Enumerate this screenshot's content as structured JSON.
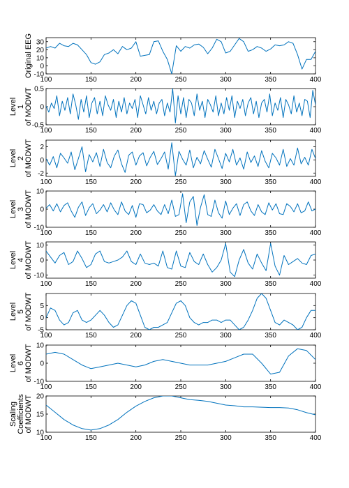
{
  "chart_data": [
    {
      "type": "line",
      "ylabel_lines": [
        "Original EEG"
      ],
      "xlim": [
        100,
        400
      ],
      "ylim": [
        -10,
        35
      ],
      "xticks": [
        100,
        150,
        200,
        250,
        300,
        350,
        400
      ],
      "yticks": [
        -10,
        0,
        10,
        20,
        30
      ],
      "grid": false,
      "line_color": "#0072bd",
      "x": [
        100,
        105,
        110,
        115,
        120,
        125,
        130,
        135,
        140,
        145,
        150,
        155,
        160,
        165,
        170,
        175,
        180,
        185,
        190,
        195,
        200,
        205,
        210,
        215,
        220,
        225,
        230,
        235,
        240,
        245,
        250,
        255,
        260,
        265,
        270,
        275,
        280,
        285,
        290,
        295,
        300,
        305,
        310,
        315,
        320,
        325,
        330,
        335,
        340,
        345,
        350,
        355,
        360,
        365,
        370,
        375,
        380,
        385,
        390,
        395,
        400
      ],
      "y": [
        22,
        24,
        22,
        28,
        25,
        24,
        28,
        26,
        20,
        14,
        4,
        2,
        5,
        14,
        16,
        20,
        15,
        24,
        20,
        22,
        30,
        12,
        13,
        14,
        30,
        31,
        18,
        8,
        -10,
        25,
        18,
        24,
        22,
        26,
        27,
        23,
        15,
        22,
        33,
        30,
        16,
        18,
        26,
        34,
        30,
        18,
        20,
        24,
        22,
        18,
        21,
        26,
        25,
        26,
        30,
        28,
        14,
        -4,
        8,
        8,
        18
      ]
    },
    {
      "type": "line",
      "ylabel_lines": [
        "Level",
        "1",
        "of MODWT"
      ],
      "xlim": [
        100,
        400
      ],
      "ylim": [
        -0.5,
        0.5
      ],
      "xticks": [
        100,
        150,
        200,
        250,
        300,
        350,
        400
      ],
      "yticks": [
        -0.5,
        0,
        0.5
      ],
      "grid": false,
      "line_color": "#0072bd",
      "x": [
        100,
        103,
        106,
        109,
        112,
        115,
        118,
        121,
        124,
        127,
        130,
        133,
        136,
        139,
        142,
        145,
        148,
        151,
        154,
        157,
        160,
        163,
        166,
        169,
        172,
        175,
        178,
        181,
        184,
        187,
        190,
        193,
        196,
        199,
        202,
        205,
        208,
        211,
        214,
        217,
        220,
        223,
        226,
        229,
        232,
        235,
        238,
        241,
        244,
        247,
        250,
        253,
        256,
        259,
        262,
        265,
        268,
        271,
        274,
        277,
        280,
        283,
        286,
        289,
        292,
        295,
        298,
        301,
        304,
        307,
        310,
        313,
        316,
        319,
        322,
        325,
        328,
        331,
        334,
        337,
        340,
        343,
        346,
        349,
        352,
        355,
        358,
        361,
        364,
        367,
        370,
        373,
        376,
        379,
        382,
        385,
        388,
        391,
        394,
        397,
        400
      ],
      "y": [
        0.02,
        -0.15,
        0.1,
        -0.05,
        0.3,
        -0.25,
        0.15,
        -0.1,
        0.25,
        -0.2,
        0.35,
        0.05,
        -0.35,
        0.2,
        -0.15,
        0.3,
        -0.3,
        0.1,
        0.25,
        -0.2,
        0.15,
        -0.25,
        0.3,
        0.05,
        -0.1,
        0.2,
        -0.3,
        0.15,
        -0.15,
        0.25,
        -0.2,
        0.1,
        -0.05,
        0.2,
        -0.3,
        0.3,
        0.05,
        -0.2,
        0.25,
        -0.1,
        0.15,
        -0.2,
        0.1,
        0.2,
        -0.25,
        0.1,
        -0.15,
        0.5,
        -0.45,
        0.3,
        -0.2,
        0.25,
        -0.3,
        0.2,
        0.1,
        -0.25,
        0.35,
        -0.1,
        0.15,
        -0.3,
        0.2,
        0.05,
        -0.15,
        0.3,
        -0.25,
        0.1,
        -0.2,
        0.25,
        -0.1,
        0.3,
        -0.3,
        0.15,
        -0.05,
        0.2,
        -0.25,
        0.1,
        0.25,
        -0.2,
        0.15,
        -0.3,
        0.1,
        0.2,
        -0.15,
        0.35,
        -0.25,
        0.1,
        -0.1,
        0.25,
        -0.3,
        0.2,
        0.05,
        -0.2,
        0.3,
        -0.15,
        0.1,
        -0.25,
        0.2,
        0.15,
        -0.3,
        0.45,
        0.05
      ]
    },
    {
      "type": "line",
      "ylabel_lines": [
        "Level",
        "2",
        "of MODWT"
      ],
      "xlim": [
        100,
        400
      ],
      "ylim": [
        -2.5,
        3
      ],
      "xticks": [
        100,
        150,
        200,
        250,
        300,
        350,
        400
      ],
      "yticks": [
        -2,
        0,
        2
      ],
      "grid": false,
      "line_color": "#0072bd",
      "x": [
        100,
        104,
        108,
        112,
        116,
        120,
        124,
        128,
        132,
        136,
        140,
        144,
        148,
        152,
        156,
        160,
        164,
        168,
        172,
        176,
        180,
        184,
        188,
        192,
        196,
        200,
        204,
        208,
        212,
        216,
        220,
        224,
        228,
        232,
        236,
        240,
        244,
        248,
        252,
        256,
        260,
        264,
        268,
        272,
        276,
        280,
        284,
        288,
        292,
        296,
        300,
        304,
        308,
        312,
        316,
        320,
        324,
        328,
        332,
        336,
        340,
        344,
        348,
        352,
        356,
        360,
        364,
        368,
        372,
        376,
        380,
        384,
        388,
        392,
        396,
        400
      ],
      "y": [
        0.2,
        -0.8,
        0.5,
        -1.2,
        1.0,
        0.3,
        -0.5,
        1.2,
        -1.5,
        0.2,
        2.0,
        -1.8,
        0.8,
        -0.3,
        1.1,
        -1.0,
        1.6,
        -0.4,
        -1.2,
        0.6,
        1.5,
        -0.6,
        -1.9,
        0.7,
        1.2,
        -0.8,
        0.6,
        1.1,
        -0.9,
        0.4,
        1.3,
        -0.7,
        0.2,
        1.2,
        -1.4,
        2.6,
        -2.4,
        1.3,
        0.1,
        -0.8,
        1.5,
        -1.2,
        0.4,
        -0.6,
        1.4,
        0.1,
        -1.1,
        1.6,
        0.2,
        -1.3,
        1.0,
        -0.3,
        1.6,
        -0.8,
        0.3,
        -1.4,
        1.2,
        -0.4,
        0.6,
        -1.0,
        1.4,
        -0.2,
        -1.2,
        1.0,
        0.3,
        -0.8,
        1.6,
        -1.0,
        0.2,
        -0.8,
        1.8,
        -0.6,
        0.4,
        -0.8,
        1.6,
        0.2
      ]
    },
    {
      "type": "line",
      "ylabel_lines": [
        "Level",
        "3",
        "of MODWT"
      ],
      "xlim": [
        100,
        400
      ],
      "ylim": [
        -10,
        10
      ],
      "xticks": [
        100,
        150,
        200,
        250,
        300,
        350,
        400
      ],
      "yticks": [
        -10,
        0,
        10
      ],
      "grid": false,
      "line_color": "#0072bd",
      "x": [
        100,
        104,
        108,
        112,
        116,
        120,
        124,
        128,
        132,
        136,
        140,
        144,
        148,
        152,
        156,
        160,
        164,
        168,
        172,
        176,
        180,
        184,
        188,
        192,
        196,
        200,
        204,
        208,
        212,
        216,
        220,
        224,
        228,
        232,
        236,
        240,
        244,
        248,
        252,
        256,
        260,
        264,
        268,
        272,
        276,
        280,
        284,
        288,
        292,
        296,
        300,
        304,
        308,
        312,
        316,
        320,
        324,
        328,
        332,
        336,
        340,
        344,
        348,
        352,
        356,
        360,
        364,
        368,
        372,
        376,
        380,
        384,
        388,
        392,
        396,
        400
      ],
      "y": [
        0.5,
        2.5,
        -1.0,
        3.0,
        -1.5,
        2.0,
        3.5,
        -1.0,
        -4.5,
        1.0,
        4.0,
        -3.5,
        0.8,
        3.0,
        -2.5,
        -0.5,
        2.5,
        -1.5,
        3.5,
        -0.5,
        -3.0,
        4.0,
        -1.0,
        -3.0,
        2.0,
        -4.5,
        3.0,
        2.5,
        -2.0,
        -0.5,
        2.5,
        -1.0,
        -3.0,
        2.5,
        -2.5,
        5.0,
        -4.0,
        -3.0,
        8.5,
        -7.5,
        4.0,
        7.0,
        -9.0,
        1.0,
        8.0,
        -3.0,
        -4.0,
        5.0,
        -2.0,
        -5.0,
        4.5,
        -3.0,
        0.5,
        3.0,
        -3.5,
        2.5,
        4.0,
        -1.0,
        -3.5,
        2.5,
        -1.5,
        -3.0,
        3.5,
        -0.5,
        3.0,
        -2.5,
        -3.0,
        3.0,
        1.5,
        -1.5,
        3.0,
        -2.0,
        -1.0,
        4.0,
        -1.0,
        0.0
      ]
    },
    {
      "type": "line",
      "ylabel_lines": [
        "Level",
        "4",
        "of MODWT"
      ],
      "xlim": [
        100,
        400
      ],
      "ylim": [
        -12,
        12
      ],
      "xticks": [
        100,
        150,
        200,
        250,
        300,
        350,
        400
      ],
      "yticks": [
        -10,
        0,
        10
      ],
      "grid": false,
      "line_color": "#0072bd",
      "x": [
        100,
        105,
        110,
        115,
        120,
        125,
        130,
        135,
        140,
        145,
        150,
        155,
        160,
        165,
        170,
        175,
        180,
        185,
        190,
        195,
        200,
        205,
        210,
        215,
        220,
        225,
        230,
        235,
        240,
        245,
        250,
        255,
        260,
        265,
        270,
        275,
        280,
        285,
        290,
        295,
        300,
        305,
        310,
        315,
        320,
        325,
        330,
        335,
        340,
        345,
        350,
        355,
        360,
        365,
        370,
        375,
        380,
        385,
        390,
        395,
        400
      ],
      "y": [
        6,
        2,
        -2,
        3,
        5,
        -3,
        -1,
        6,
        1,
        -5,
        -3,
        4,
        6,
        -1,
        -2,
        -1,
        0,
        2,
        6,
        -1,
        -3,
        4,
        -2,
        -3,
        -2,
        -4,
        6,
        -5,
        -6,
        6,
        -4,
        -5,
        5,
        -1,
        -3,
        4,
        -3,
        -8,
        -5,
        0,
        11,
        -8,
        -11,
        0,
        7,
        -2,
        -6,
        4,
        -2,
        -7,
        11,
        -4,
        -10,
        3,
        -3,
        -1,
        1,
        -2,
        -3,
        3,
        4
      ]
    },
    {
      "type": "line",
      "ylabel_lines": [
        "Level",
        "5",
        "of MODWT"
      ],
      "xlim": [
        100,
        400
      ],
      "ylim": [
        -5,
        10
      ],
      "xticks": [
        100,
        150,
        200,
        250,
        300,
        350,
        400
      ],
      "yticks": [
        -5,
        0,
        5
      ],
      "grid": false,
      "line_color": "#0072bd",
      "x": [
        100,
        105,
        110,
        115,
        120,
        125,
        130,
        135,
        140,
        145,
        150,
        155,
        160,
        165,
        170,
        175,
        180,
        185,
        190,
        195,
        200,
        205,
        210,
        215,
        220,
        225,
        230,
        235,
        240,
        245,
        250,
        255,
        260,
        265,
        270,
        275,
        280,
        285,
        290,
        295,
        300,
        305,
        310,
        315,
        320,
        325,
        330,
        335,
        340,
        345,
        350,
        355,
        360,
        365,
        370,
        375,
        380,
        385,
        390,
        395,
        400
      ],
      "y": [
        0,
        4,
        3,
        -1,
        -3,
        -2,
        2,
        3,
        -1,
        -2,
        -1,
        1,
        3,
        1,
        -2,
        -4,
        -3,
        1,
        5,
        7,
        6,
        1,
        -4,
        -5,
        -4,
        -4,
        -3,
        -2,
        2,
        6,
        7,
        5,
        0,
        -2,
        -3,
        -2,
        -2,
        -1,
        -1,
        -2,
        -1,
        -1,
        -3,
        -5,
        -4,
        -1,
        3,
        8,
        10,
        8,
        3,
        -2,
        -3,
        -1,
        -2,
        -3,
        -5,
        -4,
        0,
        3,
        3
      ]
    },
    {
      "type": "line",
      "ylabel_lines": [
        "Level",
        "6",
        "of MODWT"
      ],
      "xlim": [
        100,
        400
      ],
      "ylim": [
        -10,
        10
      ],
      "xticks": [
        100,
        150,
        200,
        250,
        300,
        350,
        400
      ],
      "yticks": [
        -10,
        0,
        10
      ],
      "grid": false,
      "line_color": "#0072bd",
      "x": [
        100,
        110,
        120,
        130,
        140,
        150,
        160,
        170,
        180,
        190,
        200,
        210,
        220,
        230,
        240,
        250,
        260,
        270,
        280,
        290,
        300,
        310,
        320,
        330,
        340,
        350,
        360,
        370,
        380,
        390,
        400
      ],
      "y": [
        5,
        6,
        5,
        2,
        -1,
        -3,
        -2,
        -1,
        0,
        -1,
        -2,
        -1,
        1,
        2,
        1,
        0,
        -1,
        -1,
        -1,
        0,
        1,
        3,
        5,
        5,
        0,
        -6,
        -5,
        4,
        8,
        7,
        2
      ]
    },
    {
      "type": "line",
      "ylabel_lines": [
        "Scaling",
        "Coefficients",
        "of MODWT"
      ],
      "xlim": [
        100,
        400
      ],
      "ylim": [
        10,
        20
      ],
      "xticks": [
        100,
        150,
        200,
        250,
        300,
        350,
        400
      ],
      "yticks": [
        10,
        15,
        20
      ],
      "grid": false,
      "line_color": "#0072bd",
      "x": [
        100,
        110,
        120,
        130,
        140,
        150,
        160,
        170,
        180,
        190,
        200,
        210,
        220,
        230,
        240,
        250,
        260,
        270,
        280,
        290,
        300,
        310,
        320,
        330,
        340,
        350,
        360,
        370,
        380,
        390,
        400
      ],
      "y": [
        17.5,
        15.5,
        13.5,
        12,
        11,
        10.6,
        11,
        12,
        13.5,
        15.5,
        17.2,
        18.5,
        19.5,
        20,
        20,
        19.5,
        19,
        18.8,
        18.5,
        18,
        17.5,
        17.3,
        17,
        17,
        16.9,
        16.8,
        16.8,
        16.7,
        16.2,
        15.4,
        14.8
      ]
    }
  ]
}
